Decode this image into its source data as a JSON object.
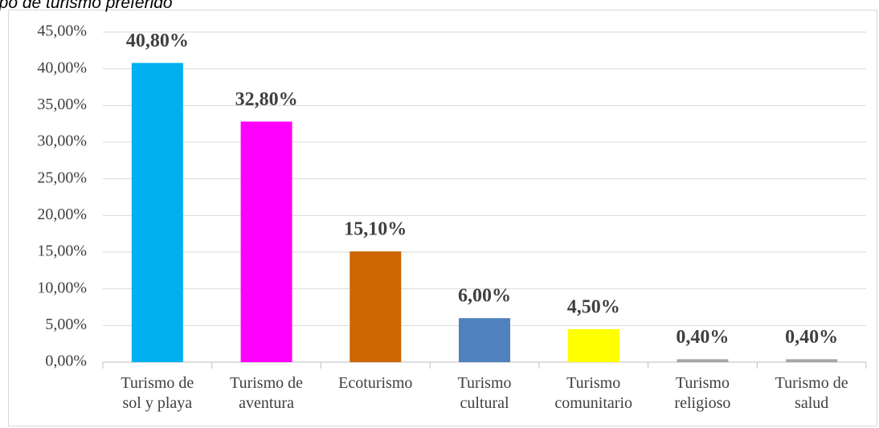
{
  "chart_data": {
    "type": "bar",
    "title": "ipo de turismo preferido",
    "categories": [
      "Turismo de\nsol y playa",
      "Turismo de\naventura",
      "Ecoturismo",
      "Turismo\ncultural",
      "Turismo\ncomunitario",
      "Turismo\nreligioso",
      "Turismo de\nsalud"
    ],
    "values": [
      40.8,
      32.8,
      15.1,
      6.0,
      4.5,
      0.4,
      0.4
    ],
    "value_labels": [
      "40,80%",
      "32,80%",
      "15,10%",
      "6,00%",
      "4,50%",
      "0,40%",
      "0,40%"
    ],
    "colors": [
      "#00b0f0",
      "#ff00ff",
      "#cc6600",
      "#4f81bd",
      "#ffff00",
      "#a5a5a5",
      "#a5a5a5"
    ],
    "ylim": [
      0,
      45
    ],
    "yticks": [
      {
        "value": 0,
        "label": "0,00%"
      },
      {
        "value": 5,
        "label": "5,00%"
      },
      {
        "value": 10,
        "label": "10,00%"
      },
      {
        "value": 15,
        "label": "15,00%"
      },
      {
        "value": 20,
        "label": "20,00%"
      },
      {
        "value": 25,
        "label": "25,00%"
      },
      {
        "value": 30,
        "label": "30,00%"
      },
      {
        "value": 35,
        "label": "35,00%"
      },
      {
        "value": 40,
        "label": "40,00%"
      },
      {
        "value": 45,
        "label": "45,00%"
      }
    ],
    "grid": true
  }
}
